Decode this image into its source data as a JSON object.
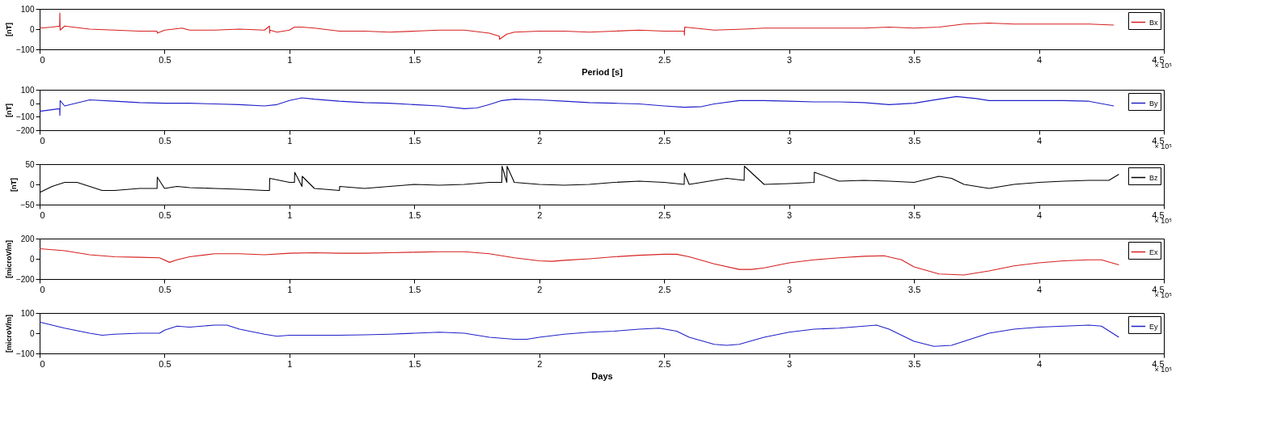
{
  "chart_data": [
    {
      "type": "line",
      "xlabel": "Period [s]",
      "ylabel": "[nT]",
      "xlim": [
        0,
        4.5
      ],
      "xticks": [
        0,
        0.5,
        1,
        1.5,
        2,
        2.5,
        3,
        3.5,
        4,
        4.5
      ],
      "ylim": [
        -100,
        100
      ],
      "yticks": [
        -100,
        0,
        100
      ],
      "legend": "top right",
      "annotations": [
        "× 10⁵"
      ],
      "series": [
        {
          "name": "Bx",
          "color": "#d62020",
          "x": [
            0,
            0.05,
            0.08,
            0.081,
            0.082,
            0.1,
            0.2,
            0.3,
            0.4,
            0.47,
            0.471,
            0.5,
            0.57,
            0.6,
            0.7,
            0.8,
            0.9,
            0.92,
            0.921,
            0.922,
            0.95,
            1.0,
            1.02,
            1.05,
            1.1,
            1.2,
            1.3,
            1.4,
            1.5,
            1.6,
            1.7,
            1.8,
            1.84,
            1.841,
            1.87,
            1.9,
            2.0,
            2.1,
            2.2,
            2.3,
            2.4,
            2.5,
            2.58,
            2.581,
            2.582,
            2.7,
            2.82,
            2.9,
            3.0,
            3.1,
            3.2,
            3.3,
            3.4,
            3.5,
            3.6,
            3.7,
            3.8,
            3.9,
            4.0,
            4.1,
            4.2,
            4.3
          ],
          "values": [
            5,
            10,
            15,
            80,
            -5,
            15,
            0,
            -5,
            -10,
            -10,
            -20,
            -5,
            5,
            -5,
            -5,
            0,
            -5,
            15,
            -20,
            -5,
            -15,
            -5,
            10,
            10,
            5,
            -10,
            -10,
            -15,
            -10,
            -5,
            -5,
            -20,
            -35,
            -50,
            -25,
            -15,
            -10,
            -10,
            -15,
            -10,
            -5,
            -10,
            -10,
            -30,
            10,
            -5,
            0,
            5,
            5,
            5,
            5,
            5,
            10,
            5,
            10,
            25,
            30,
            25,
            25,
            25,
            25,
            20
          ]
        }
      ]
    },
    {
      "type": "line",
      "ylabel": "[nT]",
      "xlim": [
        0,
        4.5
      ],
      "xticks": [
        0,
        0.5,
        1,
        1.5,
        2,
        2.5,
        3,
        3.5,
        4,
        4.5
      ],
      "ylim": [
        -200,
        100
      ],
      "yticks": [
        -200,
        -100,
        0,
        100
      ],
      "legend": "top right",
      "annotations": [
        "× 10⁵"
      ],
      "series": [
        {
          "name": "By",
          "color": "#2020c8",
          "x": [
            0,
            0.08,
            0.081,
            0.082,
            0.1,
            0.2,
            0.3,
            0.4,
            0.5,
            0.6,
            0.7,
            0.8,
            0.9,
            0.95,
            1.0,
            1.05,
            1.1,
            1.2,
            1.3,
            1.4,
            1.5,
            1.6,
            1.7,
            1.75,
            1.8,
            1.85,
            1.9,
            2.0,
            2.1,
            2.2,
            2.3,
            2.4,
            2.5,
            2.58,
            2.65,
            2.7,
            2.8,
            2.9,
            3.0,
            3.1,
            3.2,
            3.3,
            3.4,
            3.5,
            3.6,
            3.67,
            3.75,
            3.8,
            3.9,
            4.0,
            4.1,
            4.2,
            4.3
          ],
          "values": [
            -60,
            -40,
            -90,
            20,
            -20,
            25,
            15,
            5,
            0,
            0,
            -5,
            -10,
            -20,
            -10,
            20,
            40,
            30,
            15,
            5,
            0,
            -10,
            -20,
            -40,
            -35,
            -10,
            20,
            30,
            25,
            15,
            5,
            0,
            -5,
            -20,
            -30,
            -25,
            -5,
            20,
            20,
            15,
            10,
            10,
            5,
            -10,
            0,
            30,
            50,
            35,
            20,
            20,
            20,
            20,
            15,
            -20
          ]
        }
      ]
    },
    {
      "type": "line",
      "ylabel": "[nT]",
      "xlim": [
        0,
        4.5
      ],
      "xticks": [
        0,
        0.5,
        1,
        1.5,
        2,
        2.5,
        3,
        3.5,
        4,
        4.5
      ],
      "ylim": [
        -50,
        50
      ],
      "yticks": [
        -50,
        0,
        50
      ],
      "legend": "top right",
      "annotations": [
        "× 10⁵"
      ],
      "series": [
        {
          "name": "Bz",
          "color": "#000000",
          "x": [
            0,
            0.05,
            0.1,
            0.15,
            0.2,
            0.25,
            0.3,
            0.4,
            0.47,
            0.471,
            0.5,
            0.55,
            0.6,
            0.7,
            0.8,
            0.9,
            0.92,
            0.921,
            1.0,
            1.02,
            1.021,
            1.05,
            1.051,
            1.1,
            1.2,
            1.201,
            1.3,
            1.4,
            1.5,
            1.6,
            1.7,
            1.8,
            1.85,
            1.851,
            1.87,
            1.871,
            1.9,
            2.0,
            2.1,
            2.2,
            2.3,
            2.4,
            2.5,
            2.58,
            2.581,
            2.6,
            2.7,
            2.75,
            2.82,
            2.821,
            2.9,
            3.0,
            3.1,
            3.101,
            3.2,
            3.3,
            3.4,
            3.5,
            3.6,
            3.65,
            3.7,
            3.8,
            3.9,
            4.0,
            4.1,
            4.2,
            4.28,
            4.32
          ],
          "values": [
            -20,
            -5,
            5,
            5,
            -5,
            -15,
            -15,
            -10,
            -10,
            18,
            -10,
            -5,
            -8,
            -10,
            -12,
            -15,
            -15,
            15,
            5,
            5,
            30,
            -5,
            20,
            -10,
            -15,
            -5,
            -10,
            -5,
            0,
            -2,
            0,
            5,
            5,
            45,
            5,
            45,
            5,
            0,
            -2,
            0,
            5,
            8,
            5,
            0,
            28,
            0,
            10,
            15,
            10,
            45,
            0,
            2,
            5,
            30,
            8,
            10,
            8,
            5,
            20,
            15,
            0,
            -10,
            0,
            5,
            8,
            10,
            10,
            25
          ]
        }
      ]
    },
    {
      "type": "line",
      "ylabel": "[microV/m]",
      "xlim": [
        0,
        4.5
      ],
      "xticks": [
        0,
        0.5,
        1,
        1.5,
        2,
        2.5,
        3,
        3.5,
        4,
        4.5
      ],
      "ylim": [
        -200,
        200
      ],
      "yticks": [
        -200,
        0,
        200
      ],
      "legend": "top right",
      "annotations": [
        "× 10⁵"
      ],
      "series": [
        {
          "name": "Ex",
          "color": "#d62020",
          "x": [
            0,
            0.1,
            0.2,
            0.3,
            0.4,
            0.48,
            0.52,
            0.55,
            0.6,
            0.7,
            0.8,
            0.9,
            1.0,
            1.1,
            1.2,
            1.3,
            1.4,
            1.5,
            1.6,
            1.7,
            1.8,
            1.9,
            2.0,
            2.05,
            2.1,
            2.2,
            2.3,
            2.4,
            2.5,
            2.55,
            2.6,
            2.7,
            2.8,
            2.85,
            2.9,
            3.0,
            3.1,
            3.2,
            3.3,
            3.38,
            3.45,
            3.5,
            3.6,
            3.7,
            3.8,
            3.9,
            4.0,
            4.1,
            4.2,
            4.25,
            4.32
          ],
          "values": [
            100,
            80,
            40,
            20,
            15,
            10,
            -35,
            -10,
            20,
            50,
            50,
            40,
            55,
            60,
            55,
            55,
            60,
            65,
            70,
            70,
            50,
            10,
            -20,
            -25,
            -15,
            0,
            20,
            35,
            45,
            45,
            20,
            -50,
            -105,
            -105,
            -90,
            -40,
            -10,
            10,
            25,
            30,
            -10,
            -80,
            -150,
            -160,
            -120,
            -70,
            -40,
            -20,
            -10,
            -10,
            -60
          ]
        }
      ]
    },
    {
      "type": "line",
      "xlabel": "Days",
      "ylabel": "[microV/m]",
      "xlim": [
        0,
        4.5
      ],
      "xticks": [
        0,
        0.5,
        1,
        1.5,
        2,
        2.5,
        3,
        3.5,
        4,
        4.5
      ],
      "ylim": [
        -100,
        100
      ],
      "yticks": [
        -100,
        0,
        100
      ],
      "legend": "top right",
      "annotations": [
        "× 10⁵"
      ],
      "series": [
        {
          "name": "Ey",
          "color": "#2020c8",
          "x": [
            0,
            0.1,
            0.2,
            0.25,
            0.3,
            0.4,
            0.48,
            0.5,
            0.55,
            0.6,
            0.7,
            0.75,
            0.8,
            0.9,
            0.95,
            1.0,
            1.1,
            1.2,
            1.3,
            1.4,
            1.5,
            1.6,
            1.7,
            1.8,
            1.9,
            1.95,
            2.0,
            2.1,
            2.2,
            2.3,
            2.4,
            2.48,
            2.55,
            2.6,
            2.7,
            2.75,
            2.8,
            2.9,
            3.0,
            3.1,
            3.2,
            3.3,
            3.35,
            3.4,
            3.5,
            3.58,
            3.65,
            3.7,
            3.8,
            3.9,
            4.0,
            4.1,
            4.2,
            4.25,
            4.32
          ],
          "values": [
            55,
            25,
            0,
            -10,
            -5,
            0,
            0,
            15,
            35,
            30,
            40,
            40,
            20,
            -5,
            -15,
            -10,
            -10,
            -10,
            -8,
            -5,
            0,
            5,
            0,
            -20,
            -30,
            -30,
            -20,
            -5,
            5,
            10,
            20,
            25,
            10,
            -20,
            -55,
            -60,
            -55,
            -20,
            5,
            20,
            25,
            35,
            40,
            20,
            -40,
            -65,
            -60,
            -40,
            0,
            20,
            30,
            35,
            40,
            35,
            -20
          ]
        }
      ]
    }
  ]
}
